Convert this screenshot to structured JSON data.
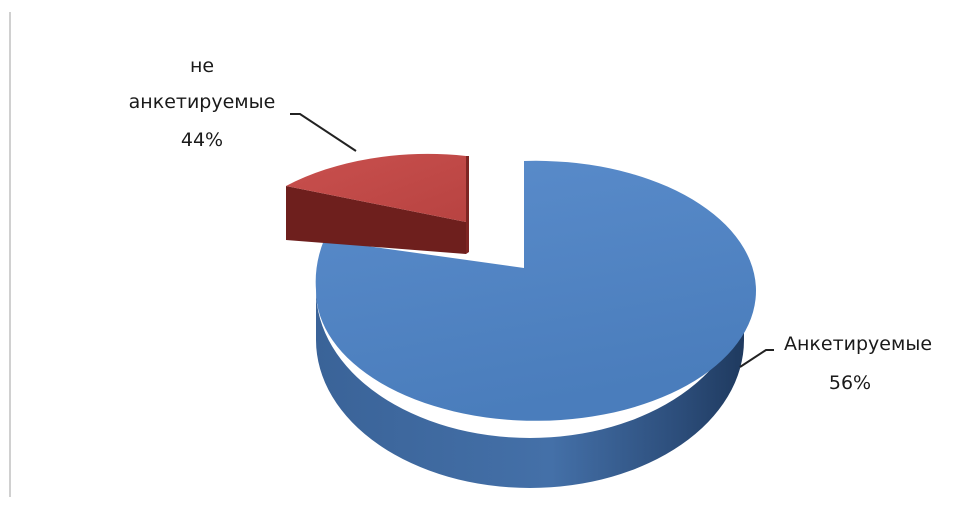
{
  "chart_data": {
    "type": "pie",
    "style": "3d-exploded",
    "title": "",
    "slices": [
      {
        "label_lines": [
          "Анкетируемые"
        ],
        "percent_text": "56%",
        "color": "#4f81bd"
      },
      {
        "label_lines": [
          "не",
          "анкетируемые"
        ],
        "percent_text": "44%",
        "color": "#c0504d"
      }
    ],
    "legend": "none"
  }
}
